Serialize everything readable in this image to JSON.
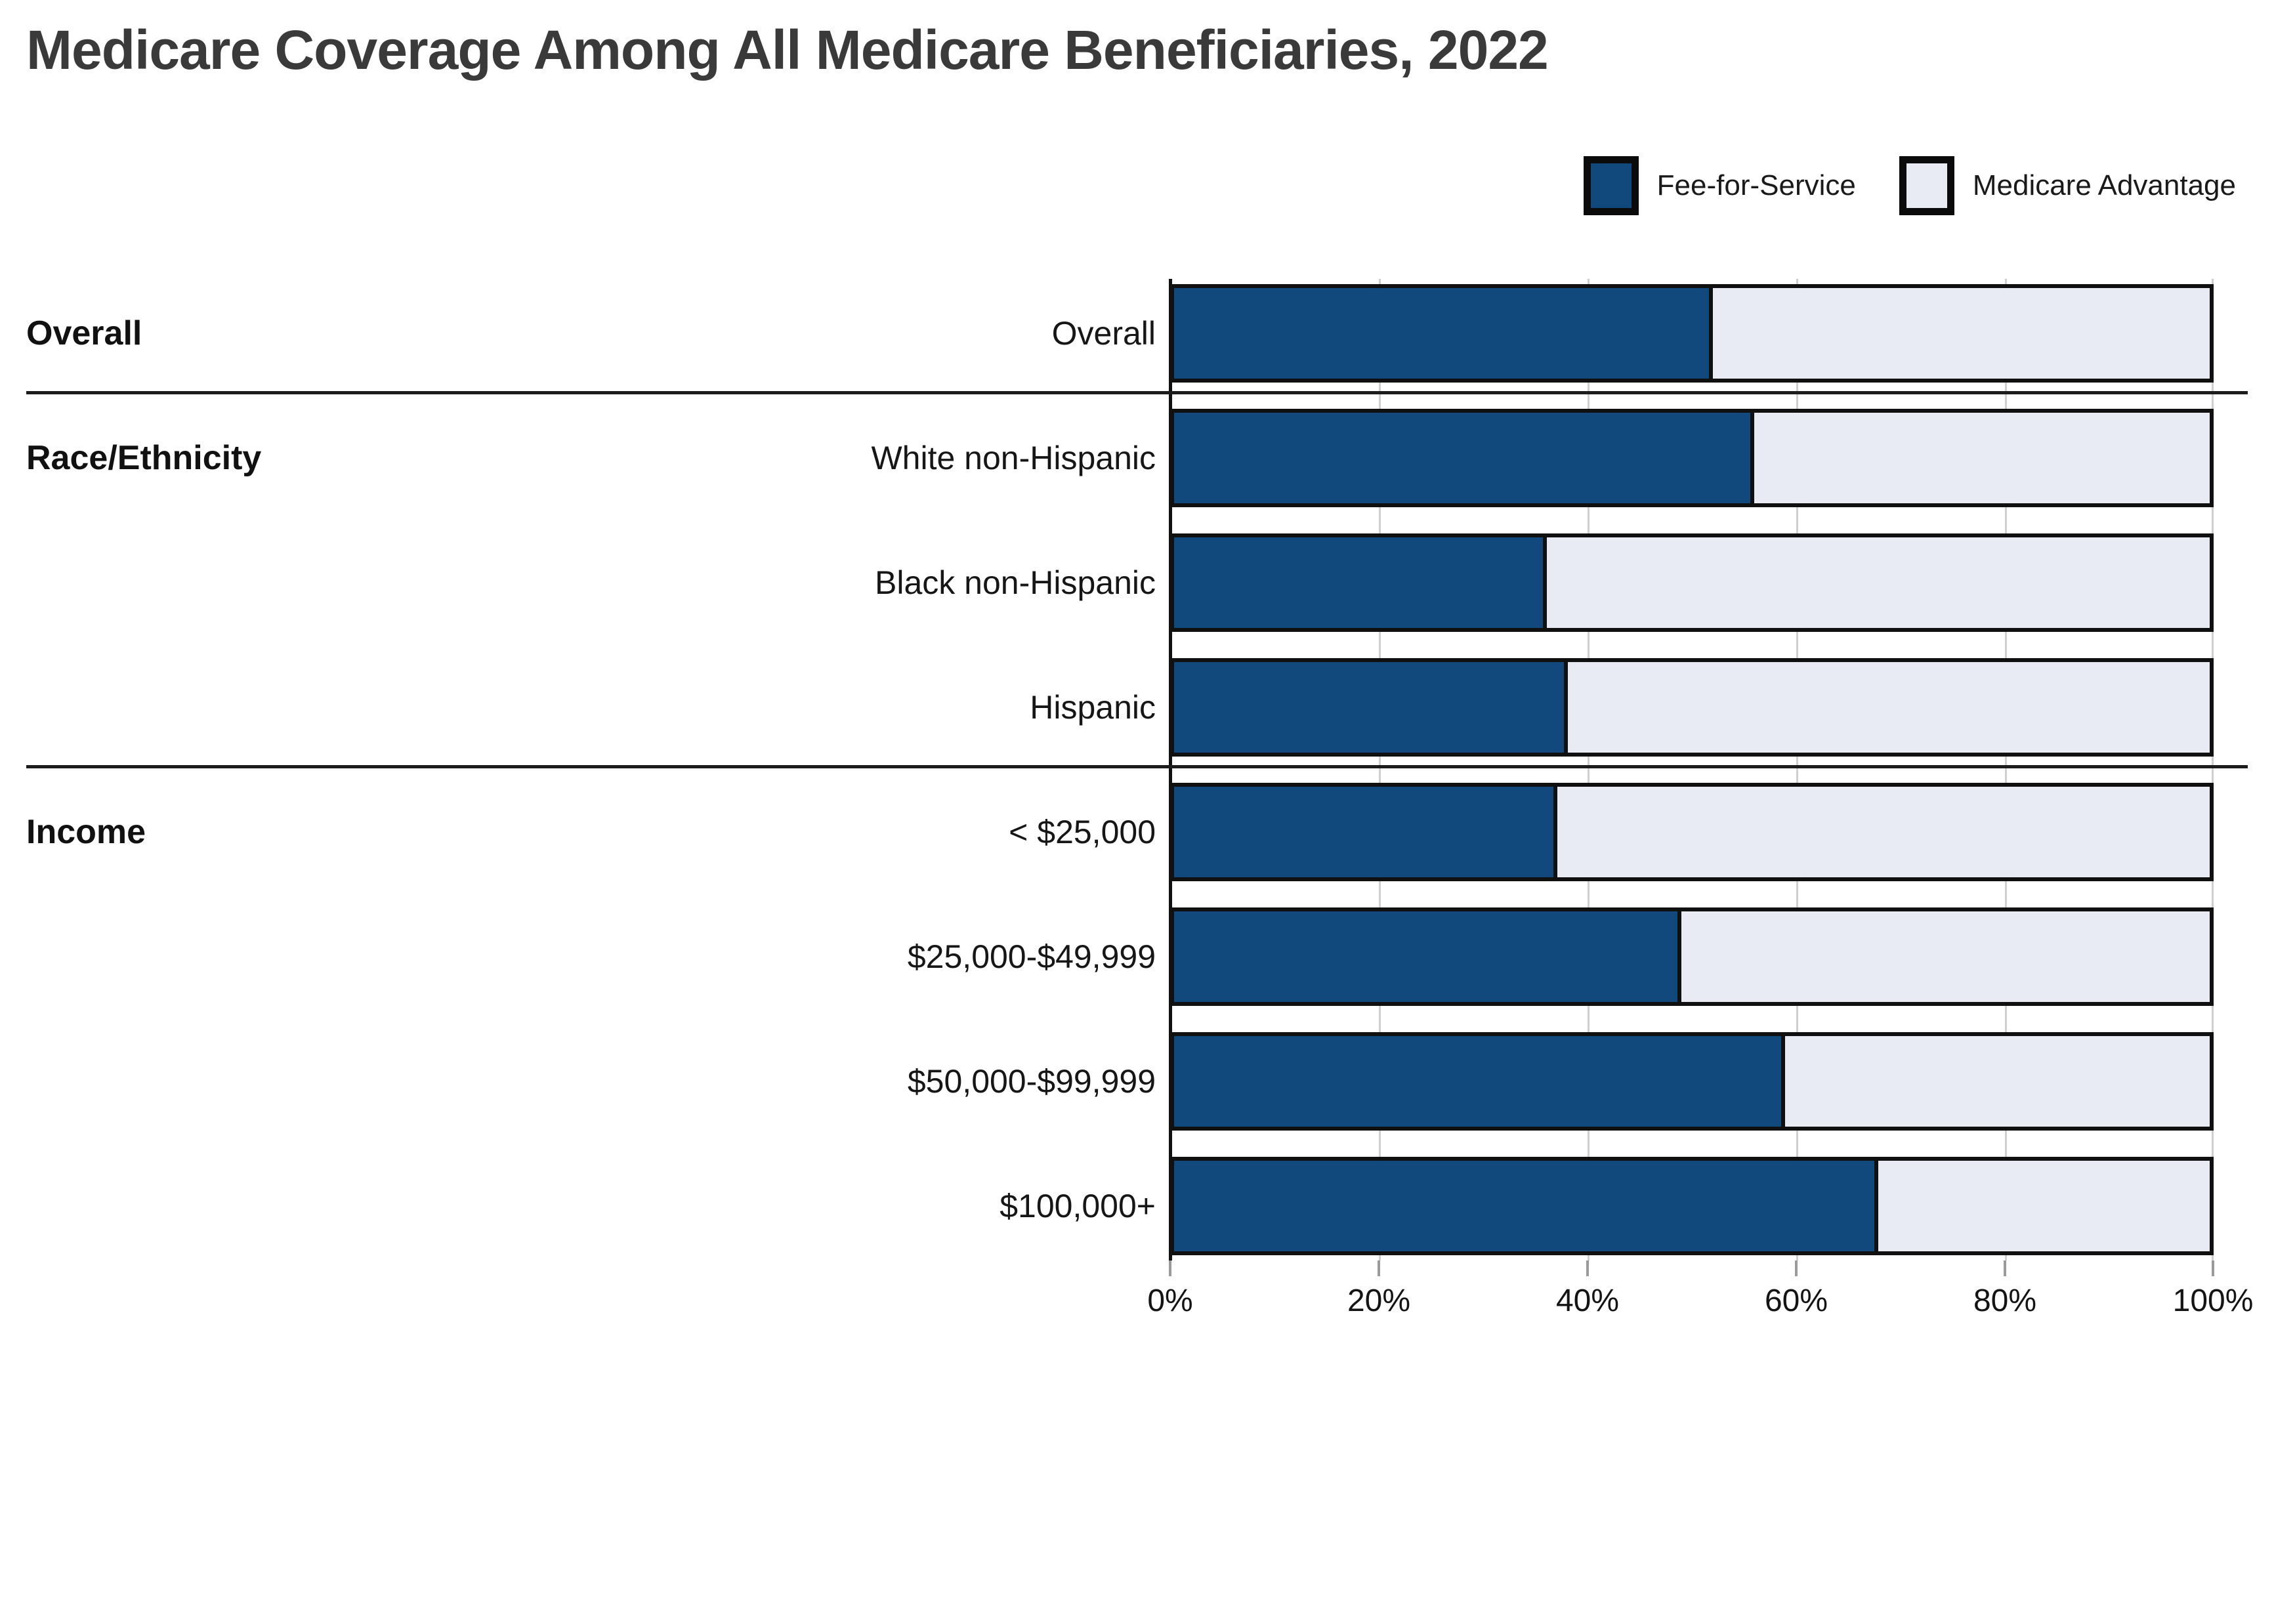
{
  "title": "Medicare Coverage Among All Medicare Beneficiaries, 2022",
  "legend": {
    "items": [
      {
        "label": "Fee-for-Service",
        "color": "#12497d"
      },
      {
        "label": "Medicare Advantage",
        "color": "#e8ebf3"
      }
    ]
  },
  "chart_data": {
    "type": "bar",
    "stacked": true,
    "orientation": "horizontal",
    "unit": "percent",
    "title": "Medicare Coverage Among All Medicare Beneficiaries, 2022",
    "series_names": [
      "Fee-for-Service",
      "Medicare Advantage"
    ],
    "x_axis": {
      "range": [
        0,
        100
      ],
      "tick_labels": [
        "0%",
        "20%",
        "40%",
        "60%",
        "80%",
        "100%"
      ],
      "gridlines": true
    },
    "colors": {
      "fee_for_service": "#12497d",
      "medicare_advantage": "#e8ebf3",
      "bar_border": "#101010"
    },
    "groups": [
      {
        "name": "Overall",
        "rows": [
          {
            "label": "Overall",
            "fee_for_service": 52,
            "medicare_advantage": 48
          }
        ]
      },
      {
        "name": "Race/Ethnicity",
        "rows": [
          {
            "label": "White non-Hispanic",
            "fee_for_service": 56,
            "medicare_advantage": 44
          },
          {
            "label": "Black non-Hispanic",
            "fee_for_service": 36,
            "medicare_advantage": 64
          },
          {
            "label": "Hispanic",
            "fee_for_service": 38,
            "medicare_advantage": 62
          }
        ]
      },
      {
        "name": "Income",
        "rows": [
          {
            "label": "< $25,000",
            "fee_for_service": 37,
            "medicare_advantage": 63
          },
          {
            "label": "$25,000-$49,999",
            "fee_for_service": 49,
            "medicare_advantage": 51
          },
          {
            "label": "$50,000-$99,999",
            "fee_for_service": 59,
            "medicare_advantage": 41
          },
          {
            "label": "$100,000+",
            "fee_for_service": 68,
            "medicare_advantage": 32
          }
        ]
      }
    ]
  }
}
